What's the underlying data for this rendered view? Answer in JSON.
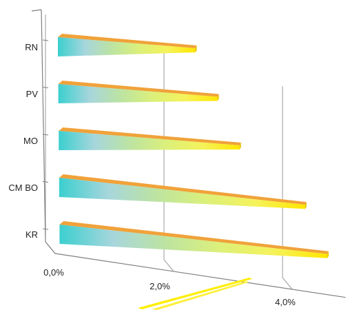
{
  "chart_data": {
    "type": "bar",
    "orientation": "horizontal",
    "style": "3d-cone",
    "title": "",
    "xlabel": "",
    "ylabel": "",
    "categories": [
      "KR",
      "CM BO",
      "MO",
      "PV",
      "RN"
    ],
    "values": [
      3.7,
      3.4,
      2.5,
      2.2,
      1.9
    ],
    "unit": "%",
    "xlim": [
      0,
      4.0
    ],
    "x_ticks": [
      "0,0%",
      "2,0%",
      "4,0%"
    ],
    "grid": true,
    "legend": "none",
    "colors": {
      "gradient": [
        "#3ccfcf",
        "#a7d6dc",
        "#bde4a0",
        "#dcf07a",
        "#f5f25a",
        "#ffe600"
      ],
      "top_edge": "#f0a23a",
      "grid": "#9a9a9a",
      "axis": "#7f7f7f"
    }
  }
}
